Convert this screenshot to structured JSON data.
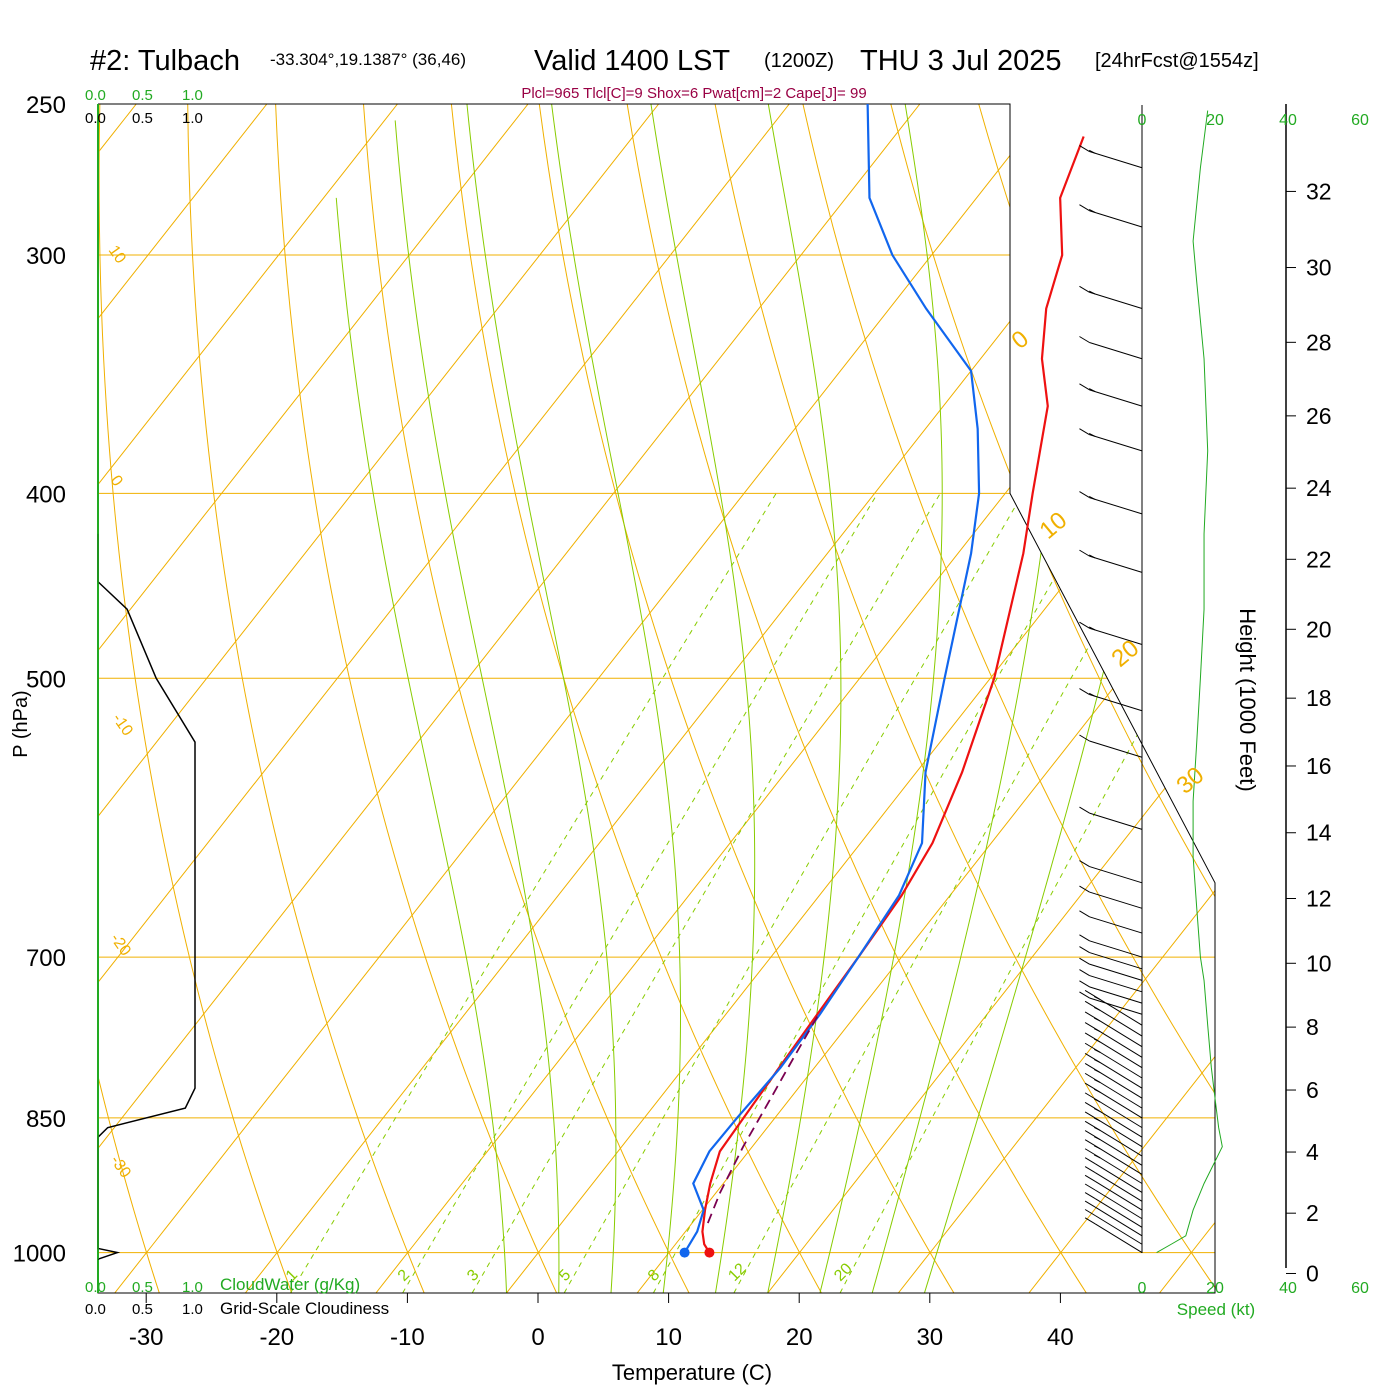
{
  "header": {
    "station": "#2: Tulbach",
    "coords": "-33.304°,19.1387° (36,46)",
    "valid": "Valid 1400 LST",
    "zulu": "(1200Z)",
    "date": "THU 3 Jul 2025",
    "forecast": "[24hrFcst@1554z]",
    "indices": "Plcl=965 Tlcl[C]=9 Shox=6 Pwat[cm]=2 Cape[J]= 99"
  },
  "axes": {
    "xlabel": "Temperature (C)",
    "ylabel": "P (hPa)",
    "height_label": "Height (1000 Feet)",
    "speed_label": "Speed (kt)",
    "cloudwater_label": "CloudWater (g/Kg)",
    "cloudiness_label": "Grid-Scale Cloudiness",
    "cloud_scale_green": [
      "0.0",
      "0.5",
      "1.0"
    ],
    "cloud_scale_black": [
      "0.0",
      "0.5",
      "1.0"
    ],
    "speed_ticks": [
      "0",
      "20",
      "40",
      "60"
    ]
  },
  "colors": {
    "temperature": "#ee1111",
    "dewpoint": "#1166ee",
    "parcel": "#7a0050",
    "isotherm": "#f0b000",
    "dry_adiabat": "#f0b000",
    "moist_adiabat": "#88cc00",
    "mixing_ratio": "#88cc00",
    "speed": "#22aa22",
    "title_accent": "#990044"
  },
  "chart_data": {
    "type": "line",
    "x_range": [
      -34,
      36
    ],
    "p_range": [
      1050,
      250
    ],
    "p_ticks": [
      1000,
      850,
      700,
      500,
      400,
      300,
      250
    ],
    "x_ticks": [
      -30,
      -20,
      -10,
      0,
      10,
      20,
      30,
      40
    ],
    "height_ticks": [
      0,
      2,
      4,
      6,
      8,
      10,
      12,
      14,
      16,
      18,
      20,
      22,
      24,
      26,
      28,
      30,
      32
    ],
    "dry_adiabat_labels": [
      "10",
      "0",
      "-10",
      "-20",
      "-30",
      "0",
      "10",
      "20",
      "30"
    ],
    "mixing_ratio_labels": [
      "1",
      "2",
      "3",
      "5",
      "8",
      "12",
      "20"
    ],
    "series": [
      {
        "name": "temperature",
        "points": [
          [
            13.1,
            1000
          ],
          [
            12.2,
            990
          ],
          [
            11.3,
            975
          ],
          [
            10.2,
            950
          ],
          [
            9.0,
            920
          ],
          [
            7.8,
            885
          ],
          [
            7.6,
            850
          ],
          [
            7.3,
            800
          ],
          [
            7.0,
            750
          ],
          [
            6.7,
            700
          ],
          [
            6.3,
            650
          ],
          [
            5.5,
            610
          ],
          [
            3.5,
            560
          ],
          [
            0.3,
            500
          ],
          [
            -5.0,
            430
          ],
          [
            -7.9,
            400
          ],
          [
            -12.0,
            360
          ],
          [
            -15.3,
            340
          ],
          [
            -18.0,
            320
          ],
          [
            -20.0,
            300
          ],
          [
            -23.6,
            280
          ],
          [
            -25.5,
            260
          ]
        ]
      },
      {
        "name": "dewpoint",
        "points": [
          [
            11.2,
            1000
          ],
          [
            10.9,
            975
          ],
          [
            10.1,
            950
          ],
          [
            7.7,
            920
          ],
          [
            7.0,
            885
          ],
          [
            7.1,
            850
          ],
          [
            7.4,
            800
          ],
          [
            7.2,
            750
          ],
          [
            6.7,
            700
          ],
          [
            6.1,
            650
          ],
          [
            4.7,
            610
          ],
          [
            0.7,
            560
          ],
          [
            -3.5,
            500
          ],
          [
            -9.0,
            430
          ],
          [
            -12.0,
            400
          ],
          [
            -16.0,
            370
          ],
          [
            -20.0,
            345
          ],
          [
            -27.2,
            320
          ],
          [
            -33.0,
            300
          ],
          [
            -38.2,
            280
          ],
          [
            -44.0,
            250
          ]
        ]
      },
      {
        "name": "parcel",
        "points": [
          [
            11.2,
            965
          ],
          [
            10.3,
            930
          ],
          [
            9.3,
            880
          ],
          [
            8.5,
            830
          ],
          [
            7.8,
            790
          ],
          [
            7.1,
            750
          ]
        ]
      }
    ],
    "wind_speed_kt": [
      [
        4,
        1000
      ],
      [
        8,
        990
      ],
      [
        12,
        980
      ],
      [
        14,
        950
      ],
      [
        17,
        920
      ],
      [
        22,
        880
      ],
      [
        21,
        860
      ],
      [
        20,
        830
      ],
      [
        19,
        800
      ],
      [
        18,
        760
      ],
      [
        17,
        720
      ],
      [
        16,
        700
      ],
      [
        15,
        660
      ],
      [
        14,
        620
      ],
      [
        14,
        580
      ],
      [
        15,
        540
      ],
      [
        16,
        500
      ],
      [
        17,
        460
      ],
      [
        17,
        420
      ],
      [
        18,
        380
      ],
      [
        17,
        340
      ],
      [
        15,
        310
      ],
      [
        14,
        295
      ],
      [
        16,
        270
      ],
      [
        18,
        252
      ]
    ],
    "wind_barbs": [
      [
        1000,
        10
      ],
      [
        990,
        10
      ],
      [
        980,
        10
      ],
      [
        970,
        12
      ],
      [
        960,
        12
      ],
      [
        950,
        12
      ],
      [
        940,
        13
      ],
      [
        930,
        14
      ],
      [
        920,
        15
      ],
      [
        910,
        15
      ],
      [
        900,
        16
      ],
      [
        890,
        17
      ],
      [
        880,
        18
      ],
      [
        870,
        18
      ],
      [
        860,
        18
      ],
      [
        850,
        17
      ],
      [
        840,
        17
      ],
      [
        830,
        16
      ],
      [
        820,
        16
      ],
      [
        810,
        16
      ],
      [
        800,
        15
      ],
      [
        790,
        15
      ],
      [
        780,
        15
      ],
      [
        770,
        15
      ],
      [
        760,
        15
      ],
      [
        750,
        14
      ],
      [
        740,
        14
      ],
      [
        730,
        14
      ],
      [
        720,
        14
      ],
      [
        710,
        13
      ],
      [
        700,
        13
      ],
      [
        680,
        13
      ],
      [
        660,
        12
      ],
      [
        640,
        12
      ],
      [
        600,
        13
      ],
      [
        550,
        14
      ],
      [
        520,
        15
      ],
      [
        480,
        16
      ],
      [
        440,
        17
      ],
      [
        410,
        17
      ],
      [
        380,
        16
      ],
      [
        360,
        15
      ],
      [
        340,
        13
      ],
      [
        320,
        15
      ],
      [
        290,
        17
      ],
      [
        270,
        18
      ]
    ],
    "cloudiness": [
      [
        0.0,
        1008
      ],
      [
        0.2,
        1000
      ],
      [
        0.0,
        995
      ],
      [
        0.0,
        870
      ],
      [
        0.1,
        860
      ],
      [
        0.9,
        840
      ],
      [
        1.0,
        820
      ],
      [
        1.0,
        800
      ],
      [
        1.0,
        700
      ],
      [
        1.0,
        600
      ],
      [
        1.0,
        540
      ],
      [
        0.6,
        500
      ],
      [
        0.3,
        460
      ],
      [
        0.0,
        445
      ],
      [
        0.0,
        420
      ]
    ],
    "cloudwater": [
      [
        0.0,
        1008
      ],
      [
        0.0,
        250
      ]
    ]
  }
}
